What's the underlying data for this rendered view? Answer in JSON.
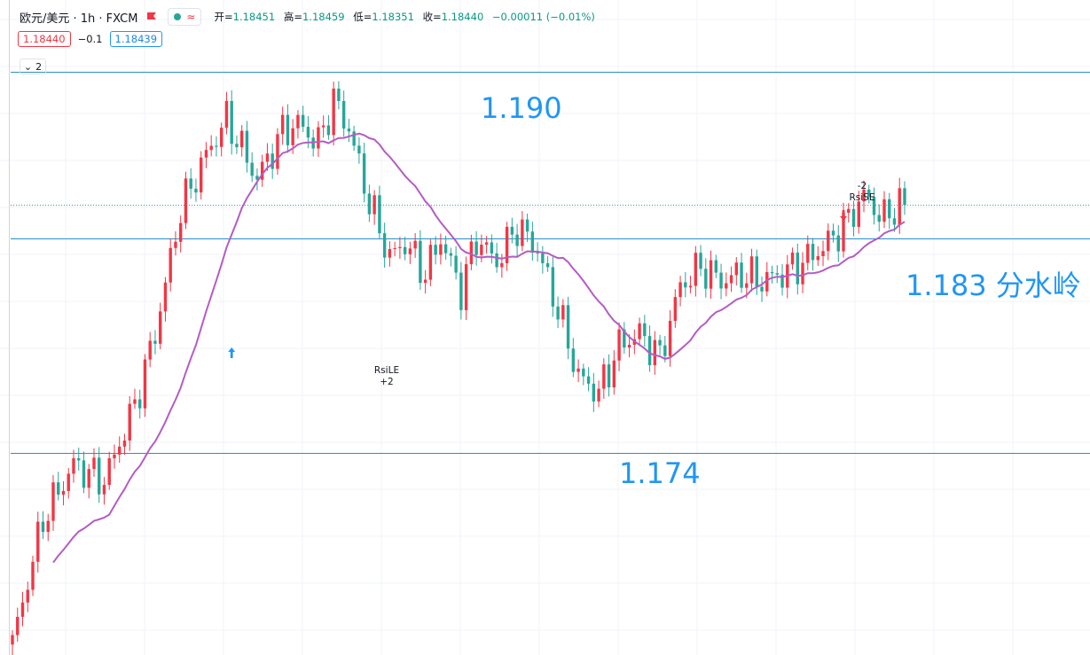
{
  "header": {
    "symbol": "欧元/美元 · 1h · FXCM",
    "ohlc": {
      "o_label": "开=",
      "o": "1.18451",
      "h_label": "高=",
      "h": "1.18459",
      "l_label": "低=",
      "l": "1.18351",
      "c_label": "收=",
      "c": "1.18440",
      "change": "−0.00011 (−0.01%)"
    },
    "bid": "1.18440",
    "spread": "−0.1",
    "ask": "1.18439",
    "collapse_count": "2"
  },
  "colors": {
    "up": "#f23645",
    "down": "#26a69a",
    "ma": "#b45cc4",
    "level_line": "#2a8fc4",
    "label": "#2196f3"
  },
  "chart_data": {
    "type": "candlestick",
    "timeframe": "1h",
    "ylim": [
      1.1655,
      1.193
    ],
    "level_labels": [
      {
        "id": "resistance",
        "value": 1.19,
        "text": "1.190"
      },
      {
        "id": "pivot",
        "value": 1.183,
        "text": "1.183 分水岭"
      },
      {
        "id": "support",
        "value": 1.174,
        "text": "1.174"
      }
    ],
    "current_price": 1.1844,
    "signals": [
      {
        "name": "RsiLE",
        "qty": "+2",
        "direction": "long",
        "bar": 43
      },
      {
        "name": "RsiSE",
        "qty": "-2",
        "direction": "short",
        "bar": 163
      }
    ],
    "anchors": [
      [
        0,
        1.166
      ],
      [
        6,
        1.1712
      ],
      [
        12,
        1.1735
      ],
      [
        18,
        1.1728
      ],
      [
        24,
        1.176
      ],
      [
        28,
        1.179
      ],
      [
        33,
        1.1842
      ],
      [
        38,
        1.1865
      ],
      [
        42,
        1.188
      ],
      [
        48,
        1.1855
      ],
      [
        53,
        1.1875
      ],
      [
        56,
        1.1878
      ],
      [
        60,
        1.187
      ],
      [
        63,
        1.1888
      ],
      [
        66,
        1.1876
      ],
      [
        70,
        1.1845
      ],
      [
        74,
        1.1822
      ],
      [
        77,
        1.1828
      ],
      [
        81,
        1.1815
      ],
      [
        84,
        1.183
      ],
      [
        88,
        1.1808
      ],
      [
        91,
        1.183
      ],
      [
        95,
        1.182
      ],
      [
        99,
        1.1835
      ],
      [
        103,
        1.1825
      ],
      [
        107,
        1.18
      ],
      [
        111,
        1.1772
      ],
      [
        115,
        1.1765
      ],
      [
        119,
        1.1785
      ],
      [
        123,
        1.179
      ],
      [
        127,
        1.178
      ],
      [
        131,
        1.181
      ],
      [
        135,
        1.1818
      ],
      [
        139,
        1.1812
      ],
      [
        143,
        1.1815
      ],
      [
        147,
        1.1812
      ],
      [
        151,
        1.1815
      ],
      [
        155,
        1.182
      ],
      [
        159,
        1.1826
      ],
      [
        163,
        1.1835
      ],
      [
        167,
        1.1848
      ],
      [
        171,
        1.1838
      ],
      [
        174,
        1.1845
      ],
      [
        175,
        1.1844
      ]
    ]
  }
}
